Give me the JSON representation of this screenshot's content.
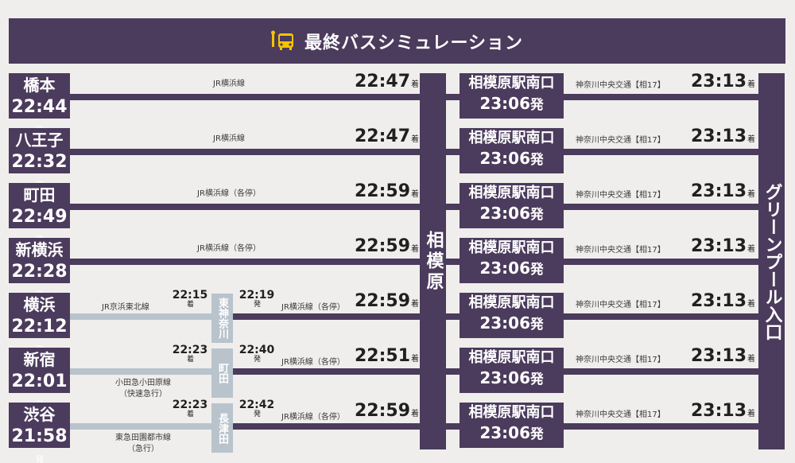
{
  "header": {
    "title": "最終バスシミュレーション",
    "icon": "bus-stop-icon"
  },
  "colors": {
    "primary": "#4b3b5c",
    "transfer": "#b9c3cc",
    "background": "#efeeec"
  },
  "arrive_suffix": "着",
  "depart_suffix": "発",
  "hub": {
    "name": "相模原"
  },
  "final": {
    "name": "グリーンプール入口"
  },
  "routes": [
    {
      "origin": "橋本",
      "dep": "22:44",
      "line": "JR横浜線",
      "arr": "22:47"
    },
    {
      "origin": "八王子",
      "dep": "22:32",
      "line": "JR横浜線",
      "arr": "22:47"
    },
    {
      "origin": "町田",
      "dep": "22:49",
      "line": "JR横浜線（各停）",
      "arr": "22:59"
    },
    {
      "origin": "新横浜",
      "dep": "22:28",
      "line": "JR横浜線（各停）",
      "arr": "22:59"
    },
    {
      "origin": "横浜",
      "dep": "22:12",
      "line1": "JR京浜東北線",
      "transfer": "東神奈川",
      "t_arr": "22:15",
      "t_dep": "22:19",
      "line2": "JR横浜線（各停）",
      "arr": "22:59"
    },
    {
      "origin": "新宿",
      "dep": "22:01",
      "line1": "小田急小田原線",
      "line1b": "（快速急行）",
      "transfer": "町田",
      "t_arr": "22:23",
      "t_dep": "22:40",
      "line2": "JR横浜線（各停）",
      "arr": "22:51"
    },
    {
      "origin": "渋谷",
      "dep": "21:58",
      "line1": "東急田園都市線",
      "line1b": "（急行）",
      "transfer": "長津田",
      "t_arr": "22:23",
      "t_dep": "22:42",
      "line2": "JR横浜線（各停）",
      "arr": "22:59"
    }
  ],
  "bus": {
    "stop": "相模原駅南口",
    "dep": "23:06",
    "line": "神奈川中央交通【相17】",
    "arr": "23:13"
  }
}
